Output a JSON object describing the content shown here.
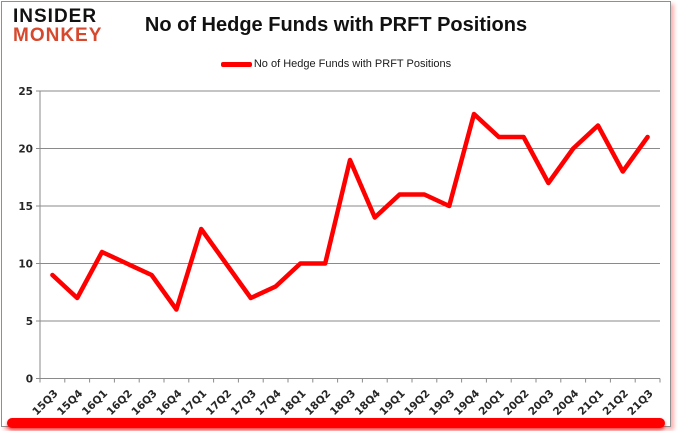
{
  "brand": {
    "line1": "INSIDER",
    "line2": "MONKEY",
    "accent_color": "#d6492e"
  },
  "header": {
    "title": "No of Hedge Funds with PRFT Positions"
  },
  "legend": {
    "label": "No of Hedge Funds with PRFT Positions",
    "line_color": "#ff0000"
  },
  "chart_data": {
    "type": "line",
    "title": "No of Hedge Funds with PRFT Positions",
    "categories": [
      "15Q3",
      "15Q4",
      "16Q1",
      "16Q2",
      "16Q3",
      "16Q4",
      "17Q1",
      "17Q2",
      "17Q3",
      "17Q4",
      "18Q1",
      "18Q2",
      "18Q3",
      "18Q4",
      "19Q1",
      "19Q2",
      "19Q3",
      "19Q4",
      "20Q1",
      "20Q2",
      "20Q3",
      "20Q4",
      "21Q1",
      "21Q2",
      "21Q3"
    ],
    "series": [
      {
        "name": "No of Hedge Funds with PRFT Positions",
        "color": "#ff0000",
        "values": [
          9,
          7,
          11,
          10,
          9,
          6,
          13,
          10,
          7,
          8,
          10,
          10,
          19,
          14,
          16,
          16,
          15,
          23,
          21,
          21,
          17,
          20,
          22,
          18,
          21
        ]
      }
    ],
    "xlabel": "",
    "ylabel": "",
    "ylim": [
      0,
      25
    ],
    "ytick_interval": 5,
    "yticks": [
      0,
      5,
      10,
      15,
      20,
      25
    ],
    "grid": true,
    "legend_position": "top-center",
    "gridline_color": "#8a8a8a",
    "axis_label_color": "#262626"
  }
}
